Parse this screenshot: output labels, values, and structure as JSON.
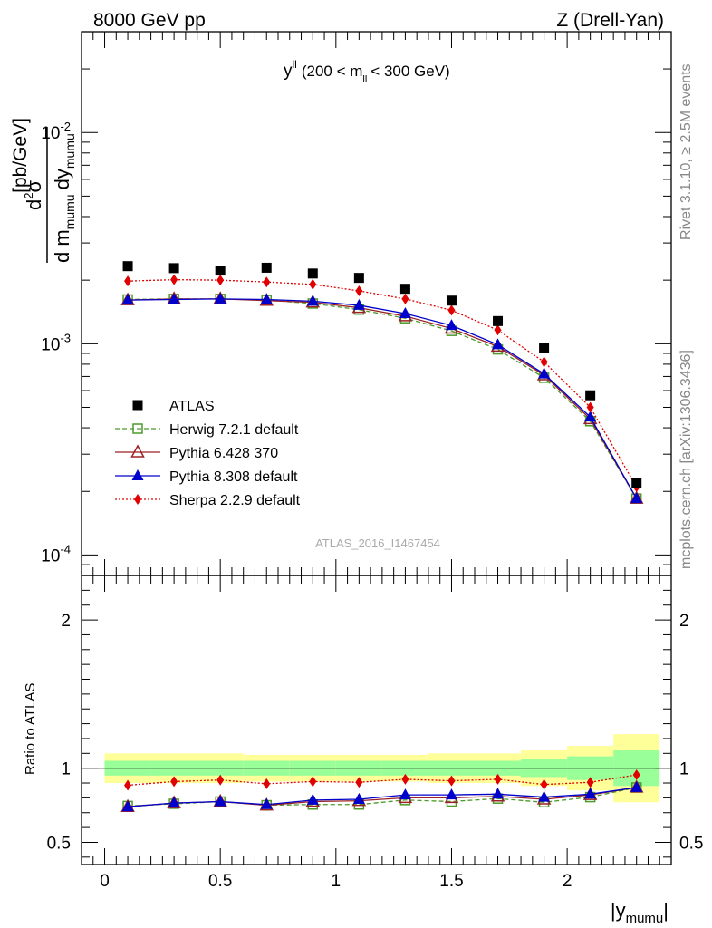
{
  "header": {
    "left": "8000 GeV pp",
    "right": "Z (Drell-Yan)"
  },
  "plot_title": {
    "var": "y",
    "var_sup": "ll",
    "pre": "(200 < m",
    "sub": "ll",
    "post": "< 300 GeV)"
  },
  "side_labels": {
    "rivet": "Rivet 3.1.10, ≥ 2.5M events",
    "mcplots": "mcplots.cern.ch [arXiv:1306.3436]"
  },
  "watermark": "ATLAS_2016_I1467454",
  "ylabel_main": {
    "num_d": "d",
    "num_sup": "2",
    "num_sigma": "σ",
    "den_pre": "d m",
    "den_sub1": "mumu",
    "den_mid": "dy",
    "den_sub2": "mumu",
    "unit": "[pb/GeV]"
  },
  "ylabel_ratio": "Ratio to ATLAS",
  "xlabel": {
    "bar_left": "|y",
    "sub": "mumu",
    "bar_right": "|"
  },
  "colors": {
    "atlas": "#000000",
    "herwig": "#4c9a2a",
    "pythia6": "#9b2226",
    "pythia8": "#0000cc",
    "sherpa": "#e00000",
    "band_outer": "#ffff99",
    "band_inner": "#99ff99"
  },
  "chart_data": {
    "type": "scatter",
    "x": [
      0.1,
      0.3,
      0.5,
      0.7,
      0.9,
      1.1,
      1.3,
      1.5,
      1.7,
      1.9,
      2.1,
      2.3
    ],
    "xlim": [
      -0.1,
      2.45
    ],
    "xticks": [
      0,
      0.5,
      1,
      1.5,
      2
    ],
    "xtick_labels": [
      "0",
      "0.5",
      "1",
      "1.5",
      "2"
    ],
    "main": {
      "yscale": "log",
      "ylim": [
        8e-05,
        0.03
      ],
      "ytick_major": [
        0.0001,
        0.001,
        0.01
      ],
      "ytick_labels": [
        {
          "base": "10",
          "exp": "-4"
        },
        {
          "base": "10",
          "exp": "-3"
        },
        {
          "base": "10",
          "exp": "-2"
        }
      ]
    },
    "ratio": {
      "ylim": [
        0.35,
        2.3
      ],
      "yticks": [
        0.5,
        1,
        2
      ],
      "ytick_labels": [
        "0.5",
        "1",
        "2"
      ],
      "band_inner": [
        0.05,
        0.05,
        0.05,
        0.05,
        0.05,
        0.05,
        0.05,
        0.05,
        0.05,
        0.06,
        0.08,
        0.12
      ],
      "band_outer": [
        0.1,
        0.1,
        0.1,
        0.09,
        0.09,
        0.09,
        0.09,
        0.1,
        0.1,
        0.12,
        0.15,
        0.23
      ]
    },
    "series": [
      {
        "key": "atlas",
        "name": "ATLAS",
        "values": [
          0.00233,
          0.00228,
          0.00222,
          0.00229,
          0.00215,
          0.00205,
          0.00182,
          0.0016,
          0.00128,
          0.00095,
          0.00057,
          0.00022
        ],
        "ratio": [
          1,
          1,
          1,
          1,
          1,
          1,
          1,
          1,
          1,
          1,
          1,
          1
        ]
      },
      {
        "key": "herwig",
        "name": "Herwig 7.2.1 default",
        "values": [
          0.00162,
          0.00163,
          0.00163,
          0.00161,
          0.00155,
          0.00145,
          0.00132,
          0.00115,
          0.00094,
          0.00069,
          0.00043,
          0.000185
        ],
        "ratio": [
          0.745,
          0.76,
          0.775,
          0.75,
          0.755,
          0.755,
          0.785,
          0.775,
          0.795,
          0.77,
          0.805,
          0.87
        ]
      },
      {
        "key": "pythia6",
        "name": "Pythia 6.428 370",
        "values": [
          0.00161,
          0.00163,
          0.00163,
          0.0016,
          0.00157,
          0.00148,
          0.00135,
          0.00118,
          0.00097,
          0.00071,
          0.00044,
          0.000185
        ],
        "ratio": [
          0.74,
          0.765,
          0.775,
          0.75,
          0.775,
          0.78,
          0.8,
          0.8,
          0.81,
          0.79,
          0.82,
          0.87
        ]
      },
      {
        "key": "pythia8",
        "name": "Pythia 8.308 default",
        "values": [
          0.00161,
          0.00162,
          0.00163,
          0.00162,
          0.00159,
          0.00152,
          0.00139,
          0.00122,
          0.00099,
          0.00072,
          0.00045,
          0.000185
        ],
        "ratio": [
          0.74,
          0.765,
          0.775,
          0.755,
          0.785,
          0.79,
          0.82,
          0.82,
          0.825,
          0.805,
          0.825,
          0.87
        ]
      },
      {
        "key": "sherpa",
        "name": "Sherpa 2.2.9 default",
        "values": [
          0.00198,
          0.00201,
          0.002,
          0.00196,
          0.00191,
          0.00178,
          0.00163,
          0.00144,
          0.00116,
          0.00082,
          0.0005,
          0.00021
        ],
        "ratio": [
          0.885,
          0.91,
          0.92,
          0.895,
          0.91,
          0.905,
          0.925,
          0.915,
          0.925,
          0.89,
          0.905,
          0.955
        ]
      }
    ]
  }
}
